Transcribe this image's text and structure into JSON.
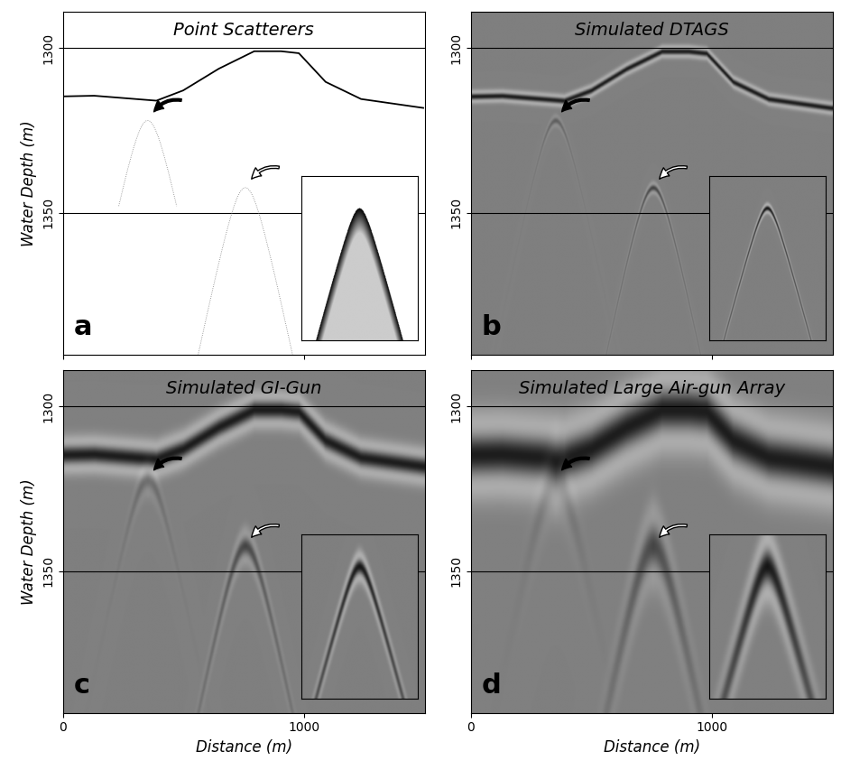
{
  "chart_data": [
    {
      "type": "image",
      "title": "Point Scatterers",
      "panel_label": "a",
      "y_label": "Water Depth (m)",
      "xlim": [
        0,
        1500
      ],
      "ylim": [
        1393,
        1289
      ],
      "xticks": [
        0,
        1000
      ],
      "yticks": [
        1300,
        1350
      ],
      "grid": "y",
      "tick_labels": "y",
      "seafloor": {
        "x": [
          0,
          129,
          387,
          498,
          646,
          793,
          904,
          978,
          1089,
          1236,
          1494
        ],
        "depth": [
          1314.7,
          1314.5,
          1316,
          1312.9,
          1306.3,
          1301,
          1301,
          1301.6,
          1310.3,
          1315.5,
          1318.2
        ]
      },
      "scatterers": {
        "x": [
          351,
          756
        ],
        "depth": [
          1322,
          1342.4
        ]
      }
    },
    {
      "type": "image",
      "title": "Simulated DTAGS",
      "panel_label": "b",
      "xlim": [
        0,
        1500
      ],
      "ylim": [
        1393,
        1289
      ],
      "xticks": [
        0,
        1000
      ],
      "yticks": [
        1300,
        1350
      ],
      "grid": "y",
      "tick_labels": "y",
      "seafloor": {
        "x": [
          0,
          129,
          387,
          498,
          646,
          793,
          904,
          978,
          1089,
          1236,
          1494
        ],
        "depth": [
          1314.7,
          1314.5,
          1316,
          1312.9,
          1306.3,
          1301,
          1301,
          1301.6,
          1310.3,
          1315.5,
          1318.2
        ]
      },
      "scatterers": {
        "x": [
          351,
          756
        ],
        "depth": [
          1322,
          1342.4
        ]
      }
    },
    {
      "type": "image",
      "title": "Simulated GI-Gun",
      "panel_label": "c",
      "x_label": "Distance (m)",
      "y_label": "Water Depth (m)",
      "xlim": [
        0,
        1500
      ],
      "ylim": [
        1393,
        1289
      ],
      "xticks": [
        0,
        1000
      ],
      "yticks": [
        1300,
        1350
      ],
      "grid": "y",
      "tick_labels": true,
      "seafloor": {
        "x": [
          0,
          129,
          387,
          498,
          646,
          793,
          904,
          978,
          1089,
          1236,
          1494
        ],
        "depth": [
          1314.7,
          1314.5,
          1316,
          1312.9,
          1306.3,
          1301,
          1301,
          1301.6,
          1310.3,
          1315.5,
          1318.2
        ]
      },
      "scatterers": {
        "x": [
          351,
          756
        ],
        "depth": [
          1322,
          1342.4
        ]
      }
    },
    {
      "type": "image",
      "title": "Simulated Large Air-gun Array",
      "panel_label": "d",
      "x_label": "Distance (m)",
      "xlim": [
        0,
        1500
      ],
      "ylim": [
        1393,
        1289
      ],
      "xticks": [
        0,
        1000
      ],
      "yticks": [
        1300,
        1350
      ],
      "grid": "y",
      "tick_labels": true,
      "seafloor": {
        "x": [
          0,
          129,
          387,
          498,
          646,
          793,
          904,
          978,
          1089,
          1236,
          1494
        ],
        "depth": [
          1314.7,
          1314.5,
          1316,
          1312.9,
          1306.3,
          1301,
          1301,
          1301.6,
          1310.3,
          1315.5,
          1318.2
        ]
      },
      "scatterers": {
        "x": [
          351,
          756
        ],
        "depth": [
          1322,
          1342.4
        ]
      }
    }
  ]
}
